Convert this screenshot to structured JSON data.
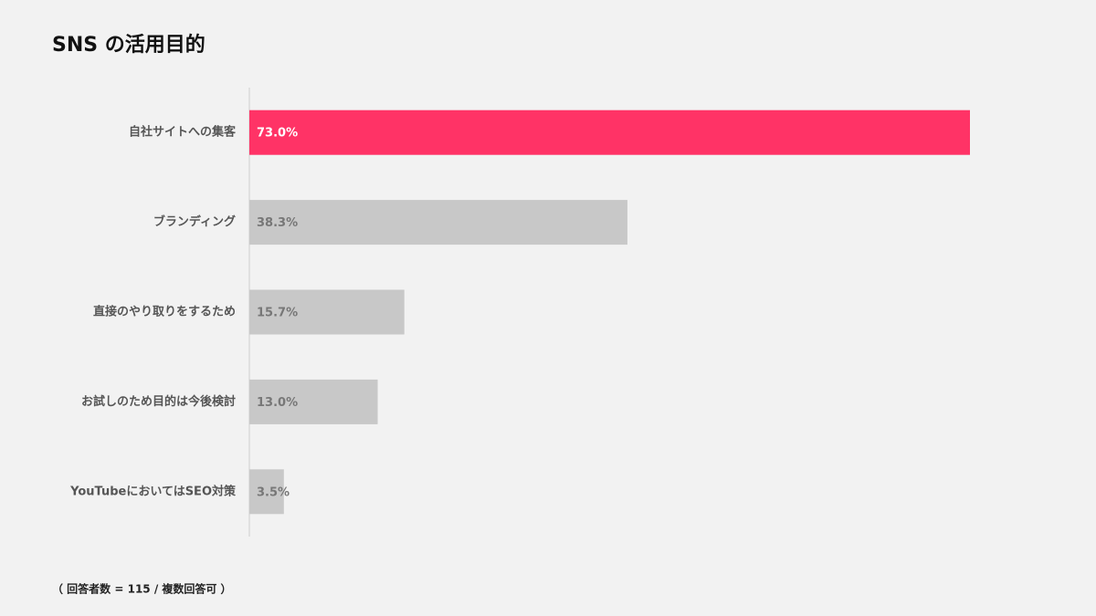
{
  "chart_data": {
    "type": "hbar",
    "title": "SNS の活用目的",
    "categories": [
      "自社サイトへの集客",
      "ブランディング",
      "直接のやり取りをするため",
      "お試しのため目的は今後検討",
      "YouTubeにおいてはSEO対策"
    ],
    "values": [
      73.0,
      38.3,
      15.7,
      13.0,
      3.5
    ],
    "value_labels": [
      "73.0%",
      "38.3%",
      "15.7%",
      "13.0%",
      "3.5%"
    ],
    "colors": [
      "#ff3366",
      "#c8c8c8",
      "#c8c8c8",
      "#c8c8c8",
      "#c8c8c8"
    ],
    "note": "（ 回答者数 = 115 / 複数回答可 ）"
  }
}
